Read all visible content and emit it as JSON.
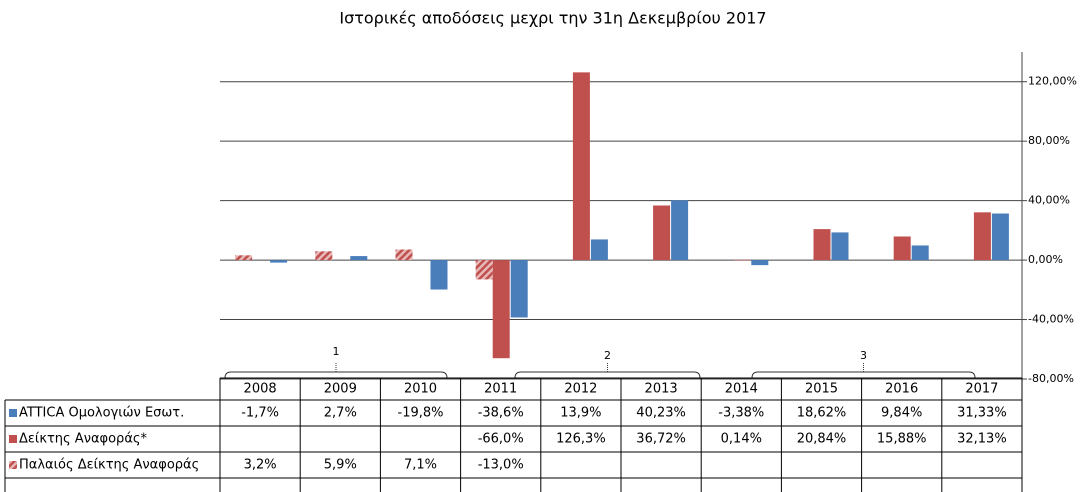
{
  "chart_data": {
    "type": "bar",
    "title": "Ιστορικές αποδόσεις μεχρι την 31η Δεκεμβρίου 2017",
    "categories": [
      "2008",
      "2009",
      "2010",
      "2011",
      "2012",
      "2013",
      "2014",
      "2015",
      "2016",
      "2017"
    ],
    "series": [
      {
        "name": "ATTICA Ομολογιών Εσωτ.",
        "color": "#4a7ebb",
        "values": [
          -1.7,
          2.7,
          -19.8,
          -38.6,
          13.9,
          40.23,
          -3.38,
          18.62,
          9.84,
          31.33
        ],
        "value_labels": [
          "-1,7%",
          "2,7%",
          "-19,8%",
          "-38,6%",
          "13,9%",
          "40,23%",
          "-3,38%",
          "18,62%",
          "9,84%",
          "31,33%"
        ]
      },
      {
        "name": "Δείκτης Αναφοράς*",
        "color": "#c0504d",
        "values": [
          null,
          null,
          null,
          -66.0,
          126.3,
          36.72,
          0.14,
          20.84,
          15.88,
          32.13
        ],
        "value_labels": [
          null,
          null,
          null,
          "-66,0%",
          "126,3%",
          "36,72%",
          "0,14%",
          "20,84%",
          "15,88%",
          "32,13%"
        ]
      },
      {
        "name": "Παλαιός Δείκτης Αναφοράς",
        "color": "#c0504d",
        "hatch": true,
        "values": [
          3.2,
          5.9,
          7.1,
          -13.0,
          null,
          null,
          null,
          null,
          null,
          null
        ],
        "value_labels": [
          "3,2%",
          "5,9%",
          "7,1%",
          "-13,0%",
          null,
          null,
          null,
          null,
          null,
          null
        ]
      }
    ],
    "group_labels": [
      "1",
      "2",
      "3"
    ],
    "ylim": [
      -80,
      140
    ],
    "yticks": [
      {
        "value": -80,
        "label": "-80,00%"
      },
      {
        "value": -40,
        "label": "-40,00%"
      },
      {
        "value": 0,
        "label": "0,00%"
      },
      {
        "value": 40,
        "label": "40,00%"
      },
      {
        "value": 80,
        "label": "80,00%"
      },
      {
        "value": 120,
        "label": "120,00%"
      }
    ],
    "grid": true
  }
}
